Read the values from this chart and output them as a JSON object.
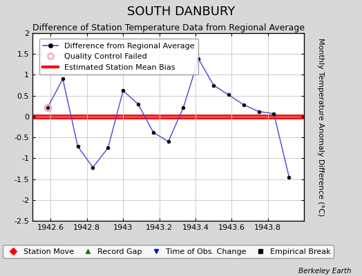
{
  "title": "SOUTH DANBURY",
  "subtitle": "Difference of Station Temperature Data from Regional Average",
  "ylabel": "Monthly Temperature Anomaly Difference (°C)",
  "footer": "Berkeley Earth",
  "xlim": [
    1942.5,
    1944.0
  ],
  "ylim": [
    -2.5,
    2.0
  ],
  "yticks": [
    -2.5,
    -2.0,
    -1.5,
    -1.0,
    -0.5,
    0.0,
    0.5,
    1.0,
    1.5,
    2.0
  ],
  "xticks": [
    1942.6,
    1942.8,
    1943.0,
    1943.2,
    1943.4,
    1943.6,
    1943.8
  ],
  "xtick_labels": [
    "1942.6",
    "1942.8",
    "1943",
    "1943.2",
    "1943.4",
    "1943.6",
    "1943.8"
  ],
  "x_data": [
    1942.583,
    1942.667,
    1942.75,
    1942.833,
    1942.917,
    1943.0,
    1943.083,
    1943.167,
    1943.25,
    1943.333,
    1943.417,
    1943.5,
    1943.583,
    1943.667,
    1943.75,
    1943.833,
    1943.917
  ],
  "y_data": [
    0.22,
    0.9,
    -0.72,
    -1.22,
    -0.75,
    0.62,
    0.3,
    -0.38,
    -0.6,
    0.22,
    1.38,
    0.75,
    0.52,
    0.28,
    0.12,
    0.07,
    -1.45
  ],
  "qc_x": [
    1942.583
  ],
  "qc_y": [
    0.22
  ],
  "bias_y": 0.0,
  "line_color": "#4444dd",
  "marker_color": "#000000",
  "bias_color": "#ff0000",
  "qc_marker_color": "#ff99cc",
  "background_color": "#d8d8d8",
  "plot_bg_color": "#ffffff",
  "grid_color": "#cccccc",
  "title_fontsize": 13,
  "subtitle_fontsize": 9,
  "axis_fontsize": 8,
  "legend_fontsize": 8,
  "tick_fontsize": 8
}
